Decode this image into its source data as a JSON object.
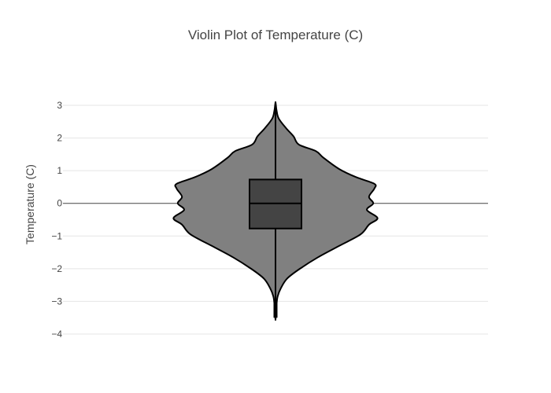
{
  "chart_data": {
    "type": "violin",
    "title": "Violin Plot of Temperature (C)",
    "xlabel": "",
    "ylabel": "Temperature (C)",
    "ylim": [
      -4,
      3
    ],
    "yticks": [
      3,
      2,
      1,
      0,
      -1,
      -2,
      -3,
      -4
    ],
    "ytick_labels": [
      "3",
      "2",
      "1",
      "0",
      "−1",
      "−2",
      "−3",
      "−4"
    ],
    "grid": true,
    "zero_line": true,
    "box": {
      "q1": -0.77,
      "median": 0.0,
      "q3": 0.73,
      "whisker_low": -3.55,
      "whisker_high": 3.1
    },
    "density_profile": [
      {
        "y": 3.1,
        "w": 0.0
      },
      {
        "y": 3.0,
        "w": 0.004
      },
      {
        "y": 2.85,
        "w": 0.01
      },
      {
        "y": 2.6,
        "w": 0.03
      },
      {
        "y": 2.3,
        "w": 0.1
      },
      {
        "y": 2.05,
        "w": 0.17
      },
      {
        "y": 1.8,
        "w": 0.22
      },
      {
        "y": 1.6,
        "w": 0.38
      },
      {
        "y": 1.4,
        "w": 0.45
      },
      {
        "y": 1.05,
        "w": 0.6
      },
      {
        "y": 0.8,
        "w": 0.76
      },
      {
        "y": 0.6,
        "w": 0.93
      },
      {
        "y": 0.45,
        "w": 0.93
      },
      {
        "y": 0.2,
        "w": 0.88
      },
      {
        "y": 0.0,
        "w": 0.92
      },
      {
        "y": -0.2,
        "w": 0.86
      },
      {
        "y": -0.45,
        "w": 0.96
      },
      {
        "y": -0.65,
        "w": 0.88
      },
      {
        "y": -0.95,
        "w": 0.8
      },
      {
        "y": -1.3,
        "w": 0.6
      },
      {
        "y": -1.65,
        "w": 0.4
      },
      {
        "y": -2.0,
        "w": 0.23
      },
      {
        "y": -2.3,
        "w": 0.11
      },
      {
        "y": -2.6,
        "w": 0.05
      },
      {
        "y": -2.85,
        "w": 0.02
      },
      {
        "y": -3.1,
        "w": 0.01
      },
      {
        "y": -3.4,
        "w": 0.005
      },
      {
        "y": -3.55,
        "w": 0.0
      }
    ],
    "colors": {
      "violin_fill": "#808080",
      "violin_outline": "#000000",
      "box_fill": "#444444",
      "grid": "#e5e5e5",
      "zero_line": "#444444",
      "text": "#444444"
    }
  }
}
